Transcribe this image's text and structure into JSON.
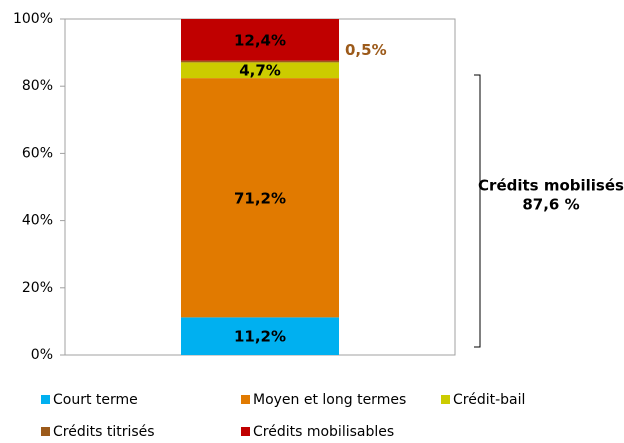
{
  "chart_data": {
    "type": "stacked_bar",
    "categories": [
      null
    ],
    "series": [
      {
        "name": "Court terme",
        "color": "#00b0f0",
        "values": [
          11.2
        ],
        "value_labels": [
          "11,2%"
        ]
      },
      {
        "name": "Moyen et long termes",
        "color": "#e17a00",
        "values": [
          71.2
        ],
        "value_labels": [
          "71,2%"
        ]
      },
      {
        "name": "Crédit-bail",
        "color": "#cccc00",
        "values": [
          4.7
        ],
        "value_labels": [
          "4,7%"
        ]
      },
      {
        "name": "Crédits titrisés",
        "color": "#9c5a1a",
        "values": [
          0.5
        ],
        "value_labels": [
          "0,5%"
        ]
      },
      {
        "name": "Crédits mobilisables",
        "color": "#c00000",
        "values": [
          12.4
        ],
        "value_labels": [
          "12,4%"
        ]
      }
    ],
    "ylim": [
      0,
      100
    ],
    "yticks": [
      {
        "value": 0,
        "label": "0%"
      },
      {
        "value": 20,
        "label": "20%"
      },
      {
        "value": 40,
        "label": "40%"
      },
      {
        "value": 60,
        "label": "60%"
      },
      {
        "value": 80,
        "label": "80%"
      },
      {
        "value": 100,
        "label": "100%"
      }
    ],
    "grid": false,
    "legend": "bottom",
    "annotation": {
      "text": [
        "Crédits mobilisés",
        "87,6 %"
      ]
    }
  }
}
